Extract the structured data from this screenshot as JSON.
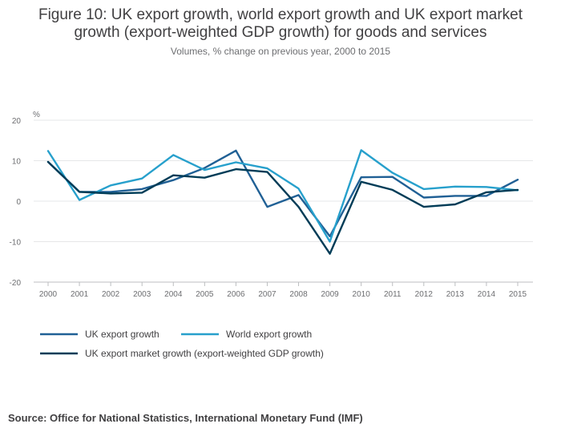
{
  "chart_data": {
    "type": "line",
    "title": "Figure 10: UK export growth, world export growth and UK export market growth (export-weighted GDP growth) for goods and services",
    "title_lines": [
      "Figure 10: UK export growth, world export growth and UK export market",
      "growth (export-weighted GDP growth) for goods and services"
    ],
    "subtitle": "Volumes, % change on previous year, 2000 to 2015",
    "ylabel": "%",
    "xlabel": "",
    "ylim": [
      -20,
      20
    ],
    "yticks": [
      "20",
      "10",
      "0",
      "-10",
      "-20"
    ],
    "ytick_values": [
      20,
      10,
      0,
      -10,
      -20
    ],
    "categories": [
      "2000",
      "2001",
      "2002",
      "2003",
      "2004",
      "2005",
      "2006",
      "2007",
      "2008",
      "2009",
      "2010",
      "2011",
      "2012",
      "2013",
      "2014",
      "2015"
    ],
    "series": [
      {
        "name": "UK export growth",
        "color": "#206095",
        "values": [
          9.7,
          2.3,
          2.3,
          3.0,
          5.2,
          8.2,
          12.5,
          -1.4,
          1.5,
          -8.7,
          5.9,
          6.0,
          0.9,
          1.3,
          1.3,
          5.3
        ]
      },
      {
        "name": "World export growth",
        "color": "#27a0cc",
        "values": [
          12.4,
          0.3,
          3.9,
          5.6,
          11.4,
          7.7,
          9.6,
          8.1,
          3.1,
          -10.0,
          12.6,
          7.0,
          3.0,
          3.6,
          3.5,
          2.7
        ]
      },
      {
        "name": "UK export market growth (export-weighted GDP growth)",
        "color": "#003c57",
        "values": [
          9.7,
          2.3,
          1.9,
          2.1,
          6.4,
          5.8,
          7.9,
          7.2,
          -1.4,
          -13.0,
          4.8,
          2.8,
          -1.4,
          -0.8,
          2.2,
          2.8
        ]
      }
    ]
  },
  "source": "Source: Office for National Statistics, International Monetary Fund (IMF)"
}
